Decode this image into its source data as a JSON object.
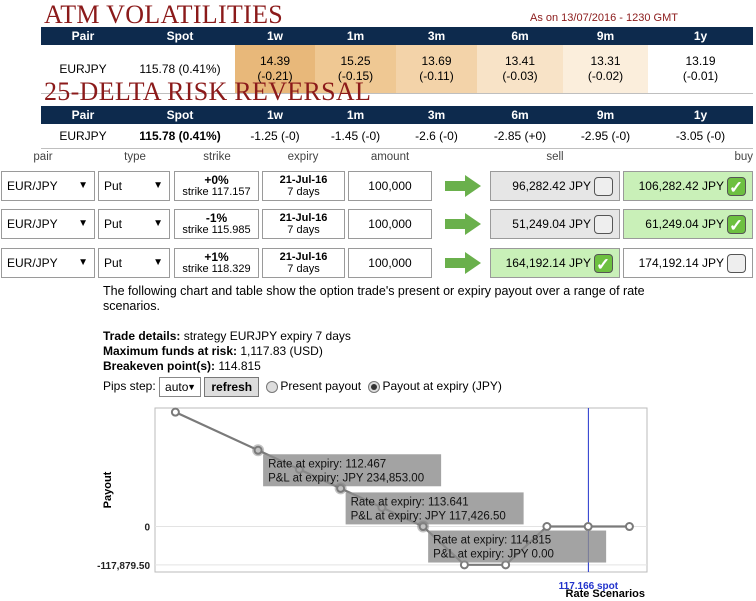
{
  "atm": {
    "title": "ATM VOLATILITIES",
    "as_of": "As on 13/07/2016 - 1230 GMT",
    "headers": [
      "Pair",
      "Spot",
      "1w",
      "1m",
      "3m",
      "6m",
      "9m",
      "1y"
    ],
    "pair": "EURJPY",
    "spot": "115.78 (0.41%)",
    "cells": [
      {
        "value": "14.39",
        "change": "(-0.21)",
        "color": "#e8b87a"
      },
      {
        "value": "15.25",
        "change": "(-0.15)",
        "color": "#efc893"
      },
      {
        "value": "13.69",
        "change": "(-0.11)",
        "color": "#f3d3a9"
      },
      {
        "value": "13.41",
        "change": "(-0.03)",
        "color": "#f8e3c7"
      },
      {
        "value": "13.31",
        "change": "(-0.02)",
        "color": "#fbeedc"
      },
      {
        "value": "13.19",
        "change": "(-0.01)",
        "color": "#ffffff"
      }
    ]
  },
  "rr": {
    "title": "25-DELTA RISK REVERSAL",
    "headers": [
      "Pair",
      "Spot",
      "1w",
      "1m",
      "3m",
      "6m",
      "9m",
      "1y"
    ],
    "pair": "EURJPY",
    "spot": "115.78 (0.41%)",
    "cells": [
      "-1.25 (-0)",
      "-1.45 (-0)",
      "-2.6 (-0)",
      "-2.85 (+0)",
      "-2.95 (-0)",
      "-3.05 (-0)"
    ]
  },
  "trade_headers": {
    "pair": "pair",
    "type": "type",
    "strike": "strike",
    "expiry": "expiry",
    "amount": "amount",
    "sell": "sell",
    "buy": "buy"
  },
  "trades": [
    {
      "pair": "EUR/JPY",
      "type": "Put",
      "pct": "+0%",
      "strike": "strike 117.157",
      "expiry": "21-Jul-16",
      "days": "7 days",
      "amount": "100,000",
      "sell": "96,282.42 JPY",
      "sell_checked": false,
      "sell_style": "gray",
      "buy": "106,282.42 JPY",
      "buy_checked": true,
      "buy_style": "green"
    },
    {
      "pair": "EUR/JPY",
      "type": "Put",
      "pct": "-1%",
      "strike": "strike 115.985",
      "expiry": "21-Jul-16",
      "days": "7 days",
      "amount": "100,000",
      "sell": "51,249.04 JPY",
      "sell_checked": false,
      "sell_style": "gray",
      "buy": "61,249.04 JPY",
      "buy_checked": true,
      "buy_style": "green"
    },
    {
      "pair": "EUR/JPY",
      "type": "Put",
      "pct": "+1%",
      "strike": "strike 118.329",
      "expiry": "21-Jul-16",
      "days": "7 days",
      "amount": "100,000",
      "sell": "164,192.14 JPY",
      "sell_checked": true,
      "sell_style": "green",
      "buy": "174,192.14 JPY",
      "buy_checked": false,
      "buy_style": "white"
    }
  ],
  "description": "The following chart and table show the option trade's present or expiry payout over a range of rate scenarios.",
  "details": {
    "trade_label": "Trade details:",
    "trade_value": " strategy EURJPY expiry 7 days",
    "funds_label": "Maximum funds at risk:",
    "funds_value": " 1,117.83 (USD)",
    "breakeven_label": "Breakeven point(s):",
    "breakeven_value": " 114.815"
  },
  "controls": {
    "pips_label": "Pips step:",
    "pips_value": "auto",
    "refresh_label": "refresh",
    "present_label": "Present payout",
    "expiry_label": "Payout at expiry (JPY)"
  },
  "chart_data": {
    "type": "line",
    "xlabel": "Rate Scenarios",
    "ylabel": "Payout",
    "legend": "P&L",
    "legend_position": "top-right",
    "y_ticks": [
      {
        "value": 0,
        "label": "0"
      },
      {
        "value": -117879.5,
        "label": "-117,879.50"
      }
    ],
    "spot_value": 117.166,
    "spot_label": "117.166 spot",
    "series": [
      {
        "name": "P&L",
        "x": [
          111.29,
          112.467,
          113.054,
          113.641,
          114.228,
          114.815,
          115.402,
          115.989,
          116.576,
          117.163,
          117.75
        ],
        "y": [
          352280,
          234853,
          176140,
          117426,
          58713,
          0,
          -117879.5,
          -117879.5,
          0,
          0,
          0
        ]
      }
    ],
    "tooltips": [
      {
        "rate": "Rate at expiry: 112.467",
        "pnl": "P&L at expiry: JPY 234,853.00"
      },
      {
        "rate": "Rate at expiry: 113.641",
        "pnl": "P&L at expiry: JPY 117,426.50"
      },
      {
        "rate": "Rate at expiry: 114.815",
        "pnl": "P&L at expiry: JPY 0.00"
      }
    ]
  }
}
